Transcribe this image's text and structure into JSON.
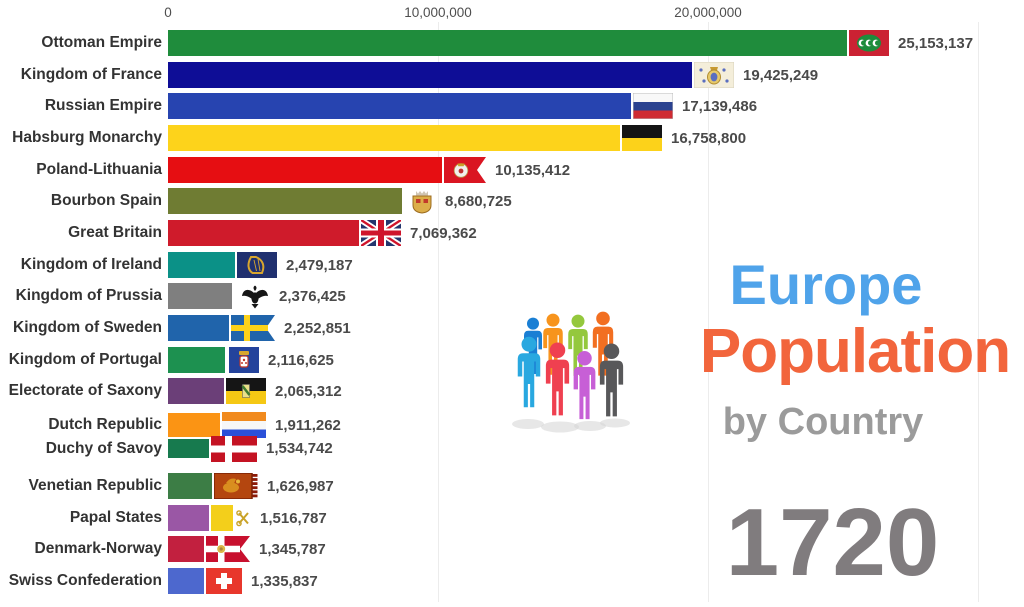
{
  "title": {
    "line1": "Europe",
    "line1_color": "#4fa3ea",
    "line2": "Population",
    "line2_color": "#f2653c",
    "line3": "by Country",
    "line3_color": "#9b9b9b",
    "icon": "people-group-icon"
  },
  "year": {
    "value": "1720",
    "color": "#807c7e"
  },
  "chart_data": {
    "type": "bar",
    "orientation": "horizontal",
    "title": "Europe Population by Country",
    "year": "1720",
    "xlabel": "Population",
    "xlim": [
      0,
      31700000
    ],
    "grid": true,
    "x_axis": {
      "position": "top",
      "ticks": [
        {
          "value": 0,
          "label": "0"
        },
        {
          "value": 10000000,
          "label": "10,000,000"
        },
        {
          "value": 20000000,
          "label": "20,000,000"
        }
      ],
      "gridlines": [
        10000000,
        20000000,
        30000000
      ]
    },
    "rows": [
      {
        "label": "Ottoman Empire",
        "value": 25153137,
        "display": "25,153,137",
        "color": "#1f8c3c",
        "flag": "ottoman"
      },
      {
        "label": "Kingdom of France",
        "value": 19425249,
        "display": "19,425,249",
        "color": "#0e0d96",
        "flag": "france"
      },
      {
        "label": "Russian Empire",
        "value": 17139486,
        "display": "17,139,486",
        "color": "#2744b0",
        "flag": "russia"
      },
      {
        "label": "Habsburg Monarchy",
        "value": 16758800,
        "display": "16,758,800",
        "color": "#fdd31b",
        "flag": "habsburg"
      },
      {
        "label": "Poland-Lithuania",
        "value": 10135412,
        "display": "10,135,412",
        "color": "#e60e12",
        "flag": "poland"
      },
      {
        "label": "Bourbon Spain",
        "value": 8680725,
        "display": "8,680,725",
        "color": "#6f7c33",
        "flag": "spain"
      },
      {
        "label": "Great Britain",
        "value": 7069362,
        "display": "7,069,362",
        "color": "#cf1b2b",
        "flag": "gb"
      },
      {
        "label": "Kingdom of Ireland",
        "value": 2479187,
        "display": "2,479,187",
        "color": "#0b9187",
        "flag": "ireland"
      },
      {
        "label": "Kingdom of Prussia",
        "value": 2376425,
        "display": "2,376,425",
        "color": "#7f7f7f",
        "flag": "prussia"
      },
      {
        "label": "Kingdom of Sweden",
        "value": 2252851,
        "display": "2,252,851",
        "color": "#2064ab",
        "flag": "sweden"
      },
      {
        "label": "Kingdom of Portugal",
        "value": 2116625,
        "display": "2,116,625",
        "color": "#1d9150",
        "flag": "portugal"
      },
      {
        "label": "Electorate of Saxony",
        "value": 2065312,
        "display": "2,065,312",
        "color": "#6b3f78",
        "flag": "saxony"
      },
      {
        "label": "Dutch Republic",
        "value": 1911262,
        "display": "1,911,262",
        "color": "#fb9414",
        "flag": "dutch"
      },
      {
        "label": "Duchy of Savoy",
        "value": 1534742,
        "display": "1,534,742",
        "color": "#177a4e",
        "flag": "savoy"
      },
      {
        "label": "Venetian Republic",
        "value": 1626987,
        "display": "1,626,987",
        "color": "#3c7d45",
        "flag": "venice"
      },
      {
        "label": "Papal States",
        "value": 1516787,
        "display": "1,516,787",
        "color": "#9a57a5",
        "flag": "papal"
      },
      {
        "label": "Denmark-Norway",
        "value": 1345787,
        "display": "1,345,787",
        "color": "#c2203f",
        "flag": "denmark"
      },
      {
        "label": "Swiss Confederation",
        "value": 1335837,
        "display": "1,335,837",
        "color": "#4d68ce",
        "flag": "swiss"
      }
    ]
  }
}
